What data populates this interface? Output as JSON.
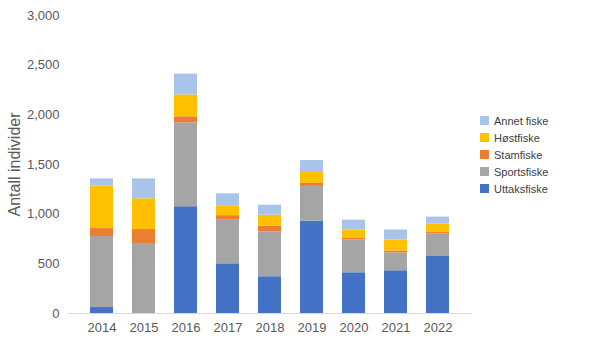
{
  "chart_data": {
    "type": "bar",
    "stacked": true,
    "y_label": "Antall individer",
    "categories": [
      "2014",
      "2015",
      "2016",
      "2017",
      "2018",
      "2019",
      "2020",
      "2021",
      "2022"
    ],
    "series": [
      {
        "name": "Uttaksfiske",
        "color": "#4472c4",
        "values": [
          60,
          0,
          1075,
          500,
          370,
          930,
          410,
          430,
          580
        ]
      },
      {
        "name": "Sportsfiske",
        "color": "#a5a5a5",
        "values": [
          715,
          705,
          845,
          445,
          450,
          350,
          330,
          180,
          220
        ]
      },
      {
        "name": "Stamfiske",
        "color": "#ed7d31",
        "values": [
          80,
          140,
          60,
          40,
          60,
          30,
          15,
          20,
          15
        ]
      },
      {
        "name": "Høstfiske",
        "color": "#ffc000",
        "values": [
          430,
          310,
          220,
          100,
          110,
          120,
          85,
          110,
          85
        ]
      },
      {
        "name": "Annet fiske",
        "color": "#a9c4eb",
        "values": [
          70,
          200,
          210,
          120,
          100,
          110,
          100,
          100,
          70
        ]
      }
    ],
    "ylim": [
      0,
      3000
    ],
    "yticks": [
      0,
      500,
      1000,
      1500,
      2000,
      2500,
      3000
    ],
    "grid": false,
    "legend": "right"
  }
}
